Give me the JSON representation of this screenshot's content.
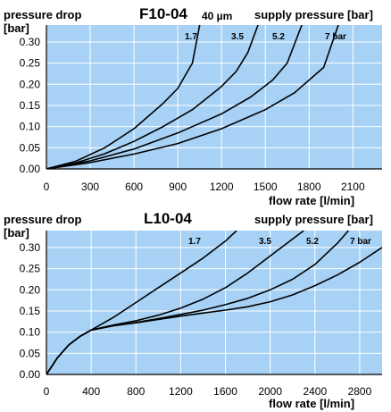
{
  "colors": {
    "plot_background": "#a7d2f6",
    "grid": "#ffffff",
    "curve": "#000000"
  },
  "chart_data": [
    {
      "type": "line",
      "title": "F10-04",
      "subtitle": "40 µm",
      "ylabel_line1": "pressure drop",
      "ylabel_line2": "[bar]",
      "legend_title": "supply pressure [bar]",
      "xlabel": "flow rate [l/min]",
      "xlim": [
        0,
        2300
      ],
      "ylim": [
        0,
        0.34
      ],
      "xticks": [
        "0",
        "300",
        "600",
        "900",
        "1200",
        "1500",
        "1800",
        "2100"
      ],
      "yticks": [
        "0.00",
        "0.05",
        "0.10",
        "0.15",
        "0.20",
        "0.25",
        "0.30"
      ],
      "grid": true,
      "series": [
        {
          "name": "1.7",
          "label": "1.7",
          "x": [
            0,
            200,
            400,
            600,
            800,
            900,
            1000,
            1050
          ],
          "y": [
            0,
            0.018,
            0.05,
            0.095,
            0.155,
            0.19,
            0.25,
            0.34
          ]
        },
        {
          "name": "3.5",
          "label": "3.5",
          "x": [
            0,
            200,
            400,
            600,
            800,
            1000,
            1200,
            1300,
            1380,
            1450
          ],
          "y": [
            0,
            0.014,
            0.036,
            0.065,
            0.1,
            0.14,
            0.195,
            0.23,
            0.275,
            0.34
          ]
        },
        {
          "name": "5.2",
          "label": "5.2",
          "x": [
            0,
            300,
            600,
            900,
            1200,
            1400,
            1550,
            1650,
            1750
          ],
          "y": [
            0,
            0.019,
            0.047,
            0.085,
            0.13,
            0.17,
            0.21,
            0.25,
            0.34
          ]
        },
        {
          "name": "7 bar",
          "label": "7 bar",
          "x": [
            0,
            300,
            600,
            900,
            1200,
            1500,
            1700,
            1900,
            2000
          ],
          "y": [
            0,
            0.015,
            0.035,
            0.06,
            0.095,
            0.14,
            0.18,
            0.24,
            0.34
          ]
        }
      ]
    },
    {
      "type": "line",
      "title": "L10-04",
      "ylabel_line1": "pressure drop",
      "ylabel_line2": "[bar]",
      "legend_title": "supply pressure [bar]",
      "xlabel": "flow rate [l/min]",
      "xlim": [
        0,
        3000
      ],
      "ylim": [
        0,
        0.34
      ],
      "xticks": [
        "0",
        "400",
        "800",
        "1200",
        "1600",
        "2000",
        "2400",
        "2800"
      ],
      "yticks": [
        "0.00",
        "0.05",
        "0.10",
        "0.15",
        "0.20",
        "0.25",
        "0.30"
      ],
      "grid": true,
      "series": [
        {
          "name": "1.7",
          "label": "1.7",
          "x": [
            0,
            100,
            200,
            300,
            400,
            600,
            800,
            1000,
            1200,
            1400,
            1600,
            1700
          ],
          "y": [
            0,
            0.04,
            0.07,
            0.09,
            0.105,
            0.135,
            0.17,
            0.205,
            0.24,
            0.275,
            0.315,
            0.34
          ]
        },
        {
          "name": "3.5",
          "label": "3.5",
          "x": [
            0,
            100,
            200,
            300,
            400,
            600,
            800,
            1000,
            1200,
            1400,
            1600,
            1800,
            2000,
            2200,
            2300
          ],
          "y": [
            0,
            0.04,
            0.07,
            0.09,
            0.105,
            0.117,
            0.127,
            0.14,
            0.157,
            0.178,
            0.205,
            0.24,
            0.28,
            0.32,
            0.34
          ]
        },
        {
          "name": "5.2",
          "label": "5.2",
          "x": [
            0,
            100,
            200,
            300,
            400,
            600,
            800,
            1000,
            1200,
            1400,
            1600,
            1800,
            2000,
            2200,
            2400,
            2600,
            2700
          ],
          "y": [
            0,
            0.04,
            0.07,
            0.09,
            0.105,
            0.115,
            0.123,
            0.132,
            0.142,
            0.152,
            0.165,
            0.18,
            0.2,
            0.225,
            0.26,
            0.31,
            0.34
          ]
        },
        {
          "name": "7 bar",
          "label": "7 bar",
          "x": [
            0,
            100,
            200,
            300,
            400,
            600,
            800,
            1000,
            1200,
            1400,
            1600,
            1800,
            2000,
            2200,
            2400,
            2600,
            2800,
            3000
          ],
          "y": [
            0,
            0.04,
            0.07,
            0.09,
            0.105,
            0.115,
            0.122,
            0.13,
            0.138,
            0.145,
            0.152,
            0.16,
            0.172,
            0.188,
            0.21,
            0.235,
            0.265,
            0.3
          ]
        }
      ]
    }
  ]
}
